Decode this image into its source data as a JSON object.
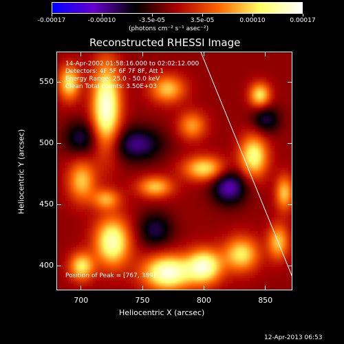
{
  "colorbar": {
    "tick_labels": [
      "-0.00017",
      "-0.00010",
      "-3.5e-05",
      "3.5e-05",
      "0.00010",
      "0.00017"
    ],
    "unit_label": "(photons cm⁻² s⁻¹ asec⁻²)",
    "colors": [
      "#0000ff",
      "#6600cc",
      "#000000",
      "#aa0000",
      "#ff6600",
      "#ffff66",
      "#ffffff"
    ]
  },
  "chart_data": {
    "type": "heatmap",
    "title": "Reconstructed RHESSI Image",
    "xlabel": "Heliocentric X (arcsec)",
    "ylabel": "Heliocentric Y (arcsec)",
    "xlim": [
      680,
      872
    ],
    "ylim": [
      380,
      575
    ],
    "x_ticks": [
      "700",
      "750",
      "800",
      "850"
    ],
    "x_tick_values": [
      700,
      750,
      800,
      850
    ],
    "y_ticks": [
      "400",
      "450",
      "500",
      "550"
    ],
    "y_tick_values": [
      400,
      450,
      500,
      550
    ],
    "limb_line": [
      [
        797,
        575
      ],
      [
        872,
        390
      ]
    ],
    "info_lines": [
      "14-Apr-2002 01:58:16.000 to 02:02:12.000",
      "Detectors: 4F 5F 6F 7F 8F, Att 1",
      "Energy Range: 25.0 - 50.0 keV",
      "Clean     Total counts: 3.50E+03"
    ],
    "peak_label": "Position of Peak = [767, 389]",
    "blobs": [
      {
        "x": 720,
        "y": 530,
        "amp": 1.0,
        "sx": 8,
        "sy": 25
      },
      {
        "x": 690,
        "y": 550,
        "amp": 0.7,
        "sx": 6,
        "sy": 10
      },
      {
        "x": 700,
        "y": 470,
        "amp": 0.6,
        "sx": 8,
        "sy": 12
      },
      {
        "x": 725,
        "y": 420,
        "amp": 0.9,
        "sx": 10,
        "sy": 14
      },
      {
        "x": 700,
        "y": 400,
        "amp": 0.7,
        "sx": 7,
        "sy": 8
      },
      {
        "x": 770,
        "y": 395,
        "amp": 1.0,
        "sx": 14,
        "sy": 10
      },
      {
        "x": 800,
        "y": 400,
        "amp": 0.9,
        "sx": 10,
        "sy": 10
      },
      {
        "x": 830,
        "y": 410,
        "amp": 0.7,
        "sx": 10,
        "sy": 10
      },
      {
        "x": 760,
        "y": 465,
        "amp": 0.6,
        "sx": 10,
        "sy": 6
      },
      {
        "x": 800,
        "y": 480,
        "amp": 0.7,
        "sx": 12,
        "sy": 7
      },
      {
        "x": 840,
        "y": 490,
        "amp": 0.8,
        "sx": 8,
        "sy": 12
      },
      {
        "x": 865,
        "y": 460,
        "amp": 0.6,
        "sx": 5,
        "sy": 10
      },
      {
        "x": 770,
        "y": 545,
        "amp": 0.6,
        "sx": 10,
        "sy": 8
      },
      {
        "x": 790,
        "y": 515,
        "amp": 0.5,
        "sx": 8,
        "sy": 8
      },
      {
        "x": 845,
        "y": 540,
        "amp": 0.7,
        "sx": 6,
        "sy": 7
      },
      {
        "x": 860,
        "y": 420,
        "amp": 0.6,
        "sx": 6,
        "sy": 10
      },
      {
        "x": 720,
        "y": 455,
        "amp": 0.5,
        "sx": 8,
        "sy": 6
      },
      {
        "x": 745,
        "y": 500,
        "amp": -0.5,
        "sx": 15,
        "sy": 10
      },
      {
        "x": 820,
        "y": 465,
        "amp": -0.6,
        "sx": 10,
        "sy": 10
      },
      {
        "x": 700,
        "y": 505,
        "amp": -0.4,
        "sx": 10,
        "sy": 10
      },
      {
        "x": 760,
        "y": 430,
        "amp": -0.4,
        "sx": 10,
        "sy": 10
      },
      {
        "x": 850,
        "y": 520,
        "amp": -0.4,
        "sx": 8,
        "sy": 8
      }
    ]
  },
  "footer": {
    "timestamp": "12-Apr-2013 06:53"
  }
}
